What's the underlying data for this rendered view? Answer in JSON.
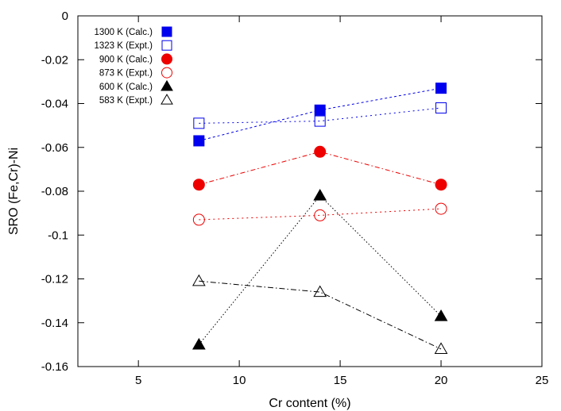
{
  "chart_data": {
    "type": "line",
    "title": "",
    "xlabel": "Cr content (%)",
    "ylabel": "SRO (Fe,Cr)-Ni",
    "xlim": [
      2,
      25
    ],
    "ylim": [
      -0.16,
      0
    ],
    "xticks": [
      5,
      10,
      15,
      20,
      25
    ],
    "yticks": [
      0,
      -0.02,
      -0.04,
      -0.06,
      -0.08,
      -0.1,
      -0.12,
      -0.14,
      -0.16
    ],
    "xtick_labels": [
      "5",
      "10",
      "15",
      "20",
      "25"
    ],
    "ytick_labels": [
      "0",
      "-0.02",
      "-0.04",
      "-0.06",
      "-0.08",
      "-0.1",
      "-0.12",
      "-0.14",
      "-0.16"
    ],
    "grid": false,
    "legend_position": "top-left",
    "series": [
      {
        "name": "1300 K (Calc.)",
        "x": [
          8,
          14,
          20
        ],
        "y": [
          -0.057,
          -0.043,
          -0.033
        ],
        "color": "#0000ee",
        "marker": "square",
        "filled": true,
        "dash": "3 3"
      },
      {
        "name": "1323 K (Expt.)",
        "x": [
          8,
          14,
          20
        ],
        "y": [
          -0.049,
          -0.048,
          -0.042
        ],
        "color": "#0000ee",
        "marker": "square",
        "filled": false,
        "dash": "2 4"
      },
      {
        "name": "900 K (Calc.)",
        "x": [
          8,
          14,
          20
        ],
        "y": [
          -0.077,
          -0.062,
          -0.077
        ],
        "color": "#ee0000",
        "marker": "circle",
        "filled": true,
        "dash": "6 3 1.5 3"
      },
      {
        "name": "873 K (Expt.)",
        "x": [
          8,
          14,
          20
        ],
        "y": [
          -0.093,
          -0.091,
          -0.088
        ],
        "color": "#ee0000",
        "marker": "circle",
        "filled": false,
        "dash": "2 4"
      },
      {
        "name": "600 K (Calc.)",
        "x": [
          8,
          14,
          20
        ],
        "y": [
          -0.15,
          -0.082,
          -0.137
        ],
        "color": "#000000",
        "marker": "triangle",
        "filled": true,
        "dash": "1.5 2.5"
      },
      {
        "name": "583 K (Expt.)",
        "x": [
          8,
          14,
          20
        ],
        "y": [
          -0.121,
          -0.126,
          -0.152
        ],
        "color": "#000000",
        "marker": "triangle",
        "filled": false,
        "dash": "7 3 1.5 3"
      }
    ]
  }
}
